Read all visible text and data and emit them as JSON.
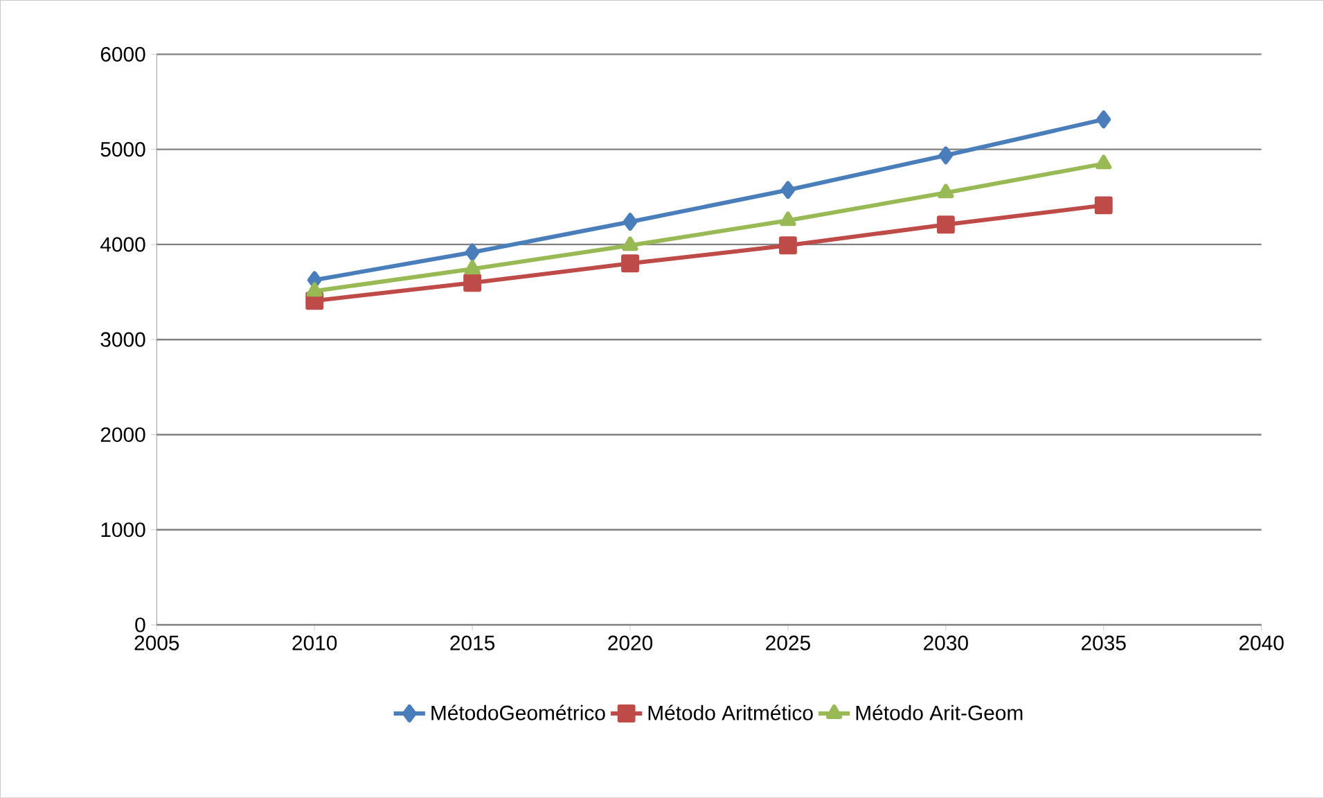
{
  "chart_data": {
    "type": "line",
    "x": [
      2010,
      2015,
      2020,
      2025,
      2030,
      2035
    ],
    "series": [
      {
        "name": "MétodoGeométrico",
        "color": "#4a7ebb",
        "marker": "diamond",
        "values": [
          3626,
          3917,
          4238,
          4573,
          4937,
          5315
        ]
      },
      {
        "name": "Método Aritmético",
        "color": "#be4b48",
        "marker": "square",
        "values": [
          3408,
          3597,
          3801,
          3990,
          4209,
          4412
        ]
      },
      {
        "name": "Método Arit-Geom",
        "color": "#98b954",
        "marker": "triangle",
        "values": [
          3510,
          3743,
          3990,
          4252,
          4544,
          4849
        ]
      }
    ],
    "xlim": [
      2005,
      2040
    ],
    "xticks": [
      2005,
      2010,
      2015,
      2020,
      2025,
      2030,
      2035,
      2040
    ],
    "ylim": [
      0,
      6000
    ],
    "yticks": [
      0,
      1000,
      2000,
      3000,
      4000,
      5000,
      6000
    ],
    "grid": "y",
    "legend": "bottom",
    "line_style": "solid"
  }
}
